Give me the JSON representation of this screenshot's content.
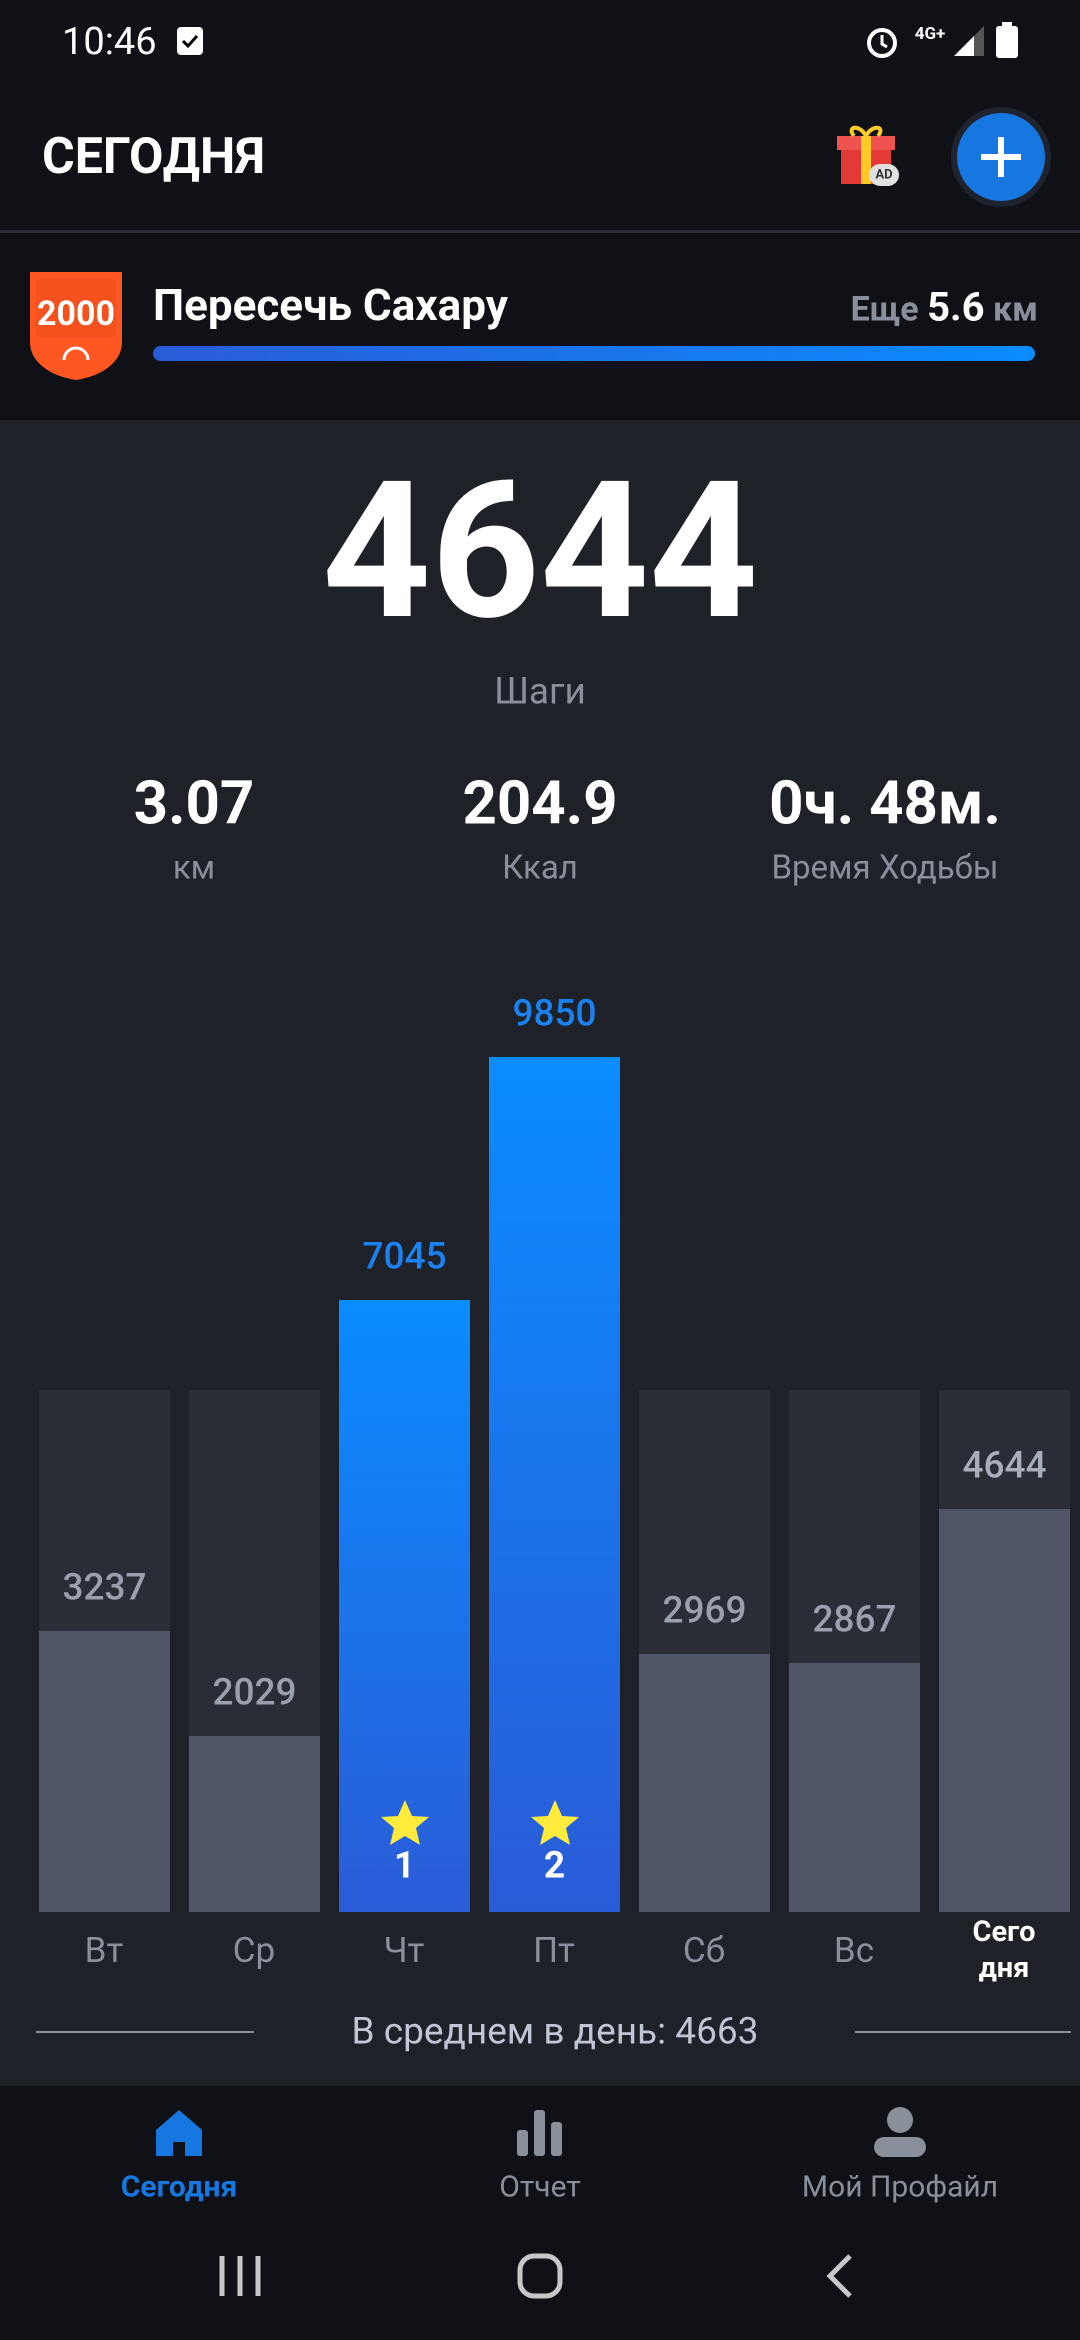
{
  "status_bar": {
    "time": "10:46",
    "network": "4G+"
  },
  "header": {
    "title": "СЕГОДНЯ",
    "gift_badge": "AD"
  },
  "challenge": {
    "badge": "2000",
    "title": "Пересечь Сахару",
    "remaining_prefix": "Еще",
    "remaining_value": "5.6",
    "remaining_unit": "км"
  },
  "summary": {
    "steps": "4644",
    "steps_label": "Шаги",
    "stats": [
      {
        "value": "3.07",
        "label": "км"
      },
      {
        "value": "204.9",
        "label": "Ккал"
      },
      {
        "value": "0ч. 48м.",
        "label": "Время Ходьбы"
      }
    ]
  },
  "chart_data": {
    "type": "bar",
    "categories": [
      "Вт",
      "Ср",
      "Чт",
      "Пт",
      "Сб",
      "Вс",
      "Сегодня"
    ],
    "values": [
      3237,
      2029,
      7045,
      9850,
      2969,
      2867,
      4644
    ],
    "colors": [
      "#4f5567",
      "#4f5567",
      "#0a8cff",
      "#0a8cff",
      "#4f5567",
      "#4f5567",
      "#4f5567"
    ],
    "stars": [
      null,
      null,
      1,
      2,
      null,
      null,
      null
    ]
  },
  "average": "В среднем в день: 4663",
  "nav": [
    "Сегодня",
    "Отчет",
    "Мой Профайл"
  ]
}
